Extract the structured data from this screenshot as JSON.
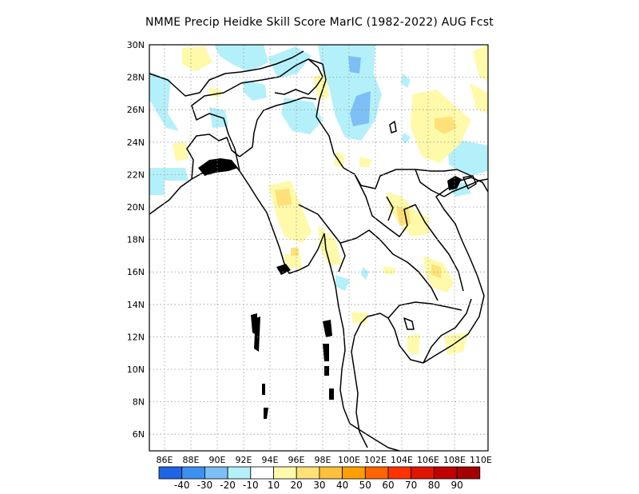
{
  "title": "NMME Precip Heidke Skill Score MarIC (1982-2022) AUG Fcst",
  "lat_ticks": [
    "30N",
    "28N",
    "26N",
    "24N",
    "22N",
    "20N",
    "18N",
    "16N",
    "14N",
    "12N",
    "10N",
    "8N",
    "6N"
  ],
  "lon_ticks": [
    "86E",
    "88E",
    "90E",
    "92E",
    "94E",
    "96E",
    "98E",
    "100E",
    "102E",
    "104E",
    "106E",
    "108E",
    "110E"
  ],
  "colorbar": {
    "colors": [
      "#1e64e6",
      "#3c91f0",
      "#7dbef5",
      "#b4f0fa",
      "#ffffff",
      "#fffaaa",
      "#ffe178",
      "#ffc03c",
      "#ffa000",
      "#ff6400",
      "#ff3200",
      "#e11400",
      "#c00000",
      "#a50000"
    ],
    "labels": [
      "-40",
      "-30",
      "-20",
      "-10",
      "10",
      "20",
      "30",
      "40",
      "50",
      "60",
      "70",
      "80",
      "90"
    ]
  },
  "legend_colors": {
    "neg_light": "#b4f0fa",
    "neg_mid": "#7dbef5",
    "pos_light": "#fffaaa",
    "pos_mid": "#ffe178"
  }
}
